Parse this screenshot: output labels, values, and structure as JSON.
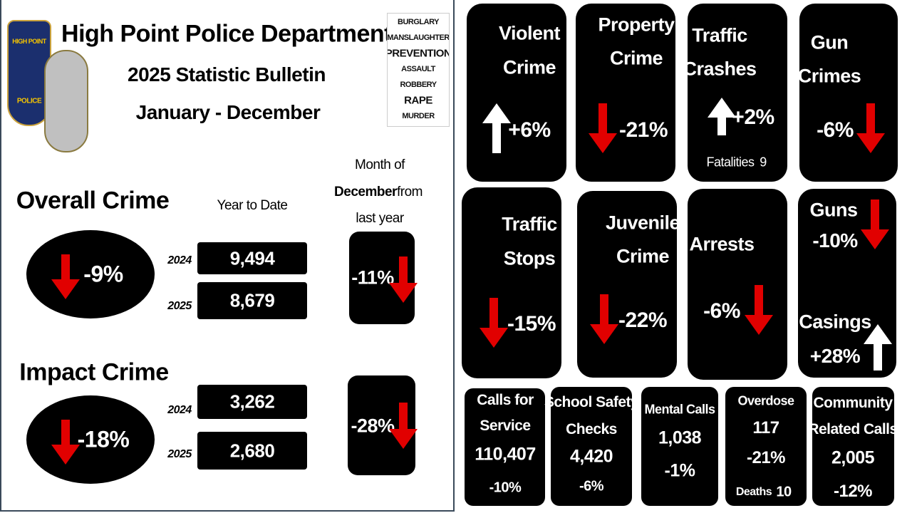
{
  "header": {
    "title": "High Point Police Department",
    "subtitle": "2025 Statistic Bulletin",
    "period": "January - December"
  },
  "badge": {
    "top": "HIGH POINT",
    "bottom": "POLICE"
  },
  "wordcloud": [
    "BURGLARY",
    "MANSLAUGHTER",
    "PREVENTION",
    "ASSAULT",
    "ROBBERY",
    "RAPE",
    "MURDER"
  ],
  "column_headers": {
    "ytd": "Year to Date",
    "month_line1": "Month of",
    "month_bold": "December",
    "month_line2": "from",
    "month_line3": "last year"
  },
  "summary": [
    {
      "label": "Overall Crime",
      "change": "-9%",
      "rows": [
        {
          "year": "2024",
          "value": "9,494"
        },
        {
          "year": "2025",
          "value": "8,679"
        }
      ],
      "month_change": "-11%"
    },
    {
      "label": "Impact Crime",
      "change": "-18%",
      "rows": [
        {
          "year": "2024",
          "value": "3,262"
        },
        {
          "year": "2025",
          "value": "2,680"
        }
      ],
      "month_change": "-28%"
    }
  ],
  "tiles": [
    {
      "title": [
        "Violent",
        "Crime"
      ],
      "change": "+6%"
    },
    {
      "title": [
        "Property",
        "Crime"
      ],
      "change": "-21%"
    },
    {
      "title": [
        "Traffic",
        "Crashes"
      ],
      "change": "+2%",
      "note": [
        "Fatalities",
        "9"
      ]
    },
    {
      "title": [
        "Gun",
        "Crimes"
      ],
      "change": "-6%"
    },
    {
      "title": [
        "Traffic",
        "Stops"
      ],
      "change": "-15%"
    },
    {
      "title": [
        "Juvenile",
        "Crime"
      ],
      "change": "-22%"
    },
    {
      "title": [
        "Arrests"
      ],
      "change": "-6%"
    },
    {
      "title": [
        "Guns",
        "Casings"
      ],
      "change": [
        "-10%",
        "+28%"
      ]
    }
  ],
  "small_tiles": [
    {
      "lines": [
        "Calls for",
        "Service",
        "110,407",
        "-10%"
      ]
    },
    {
      "lines": [
        "School Safety",
        "Checks",
        "4,420",
        "-6%"
      ]
    },
    {
      "lines": [
        "Mental Calls",
        "1,038",
        "-1%"
      ]
    },
    {
      "lines": [
        "Overdose",
        "117",
        "-21%",
        "Deaths",
        "10"
      ]
    },
    {
      "lines": [
        "Community",
        "Related Calls",
        "2,005",
        "-12%"
      ]
    }
  ]
}
